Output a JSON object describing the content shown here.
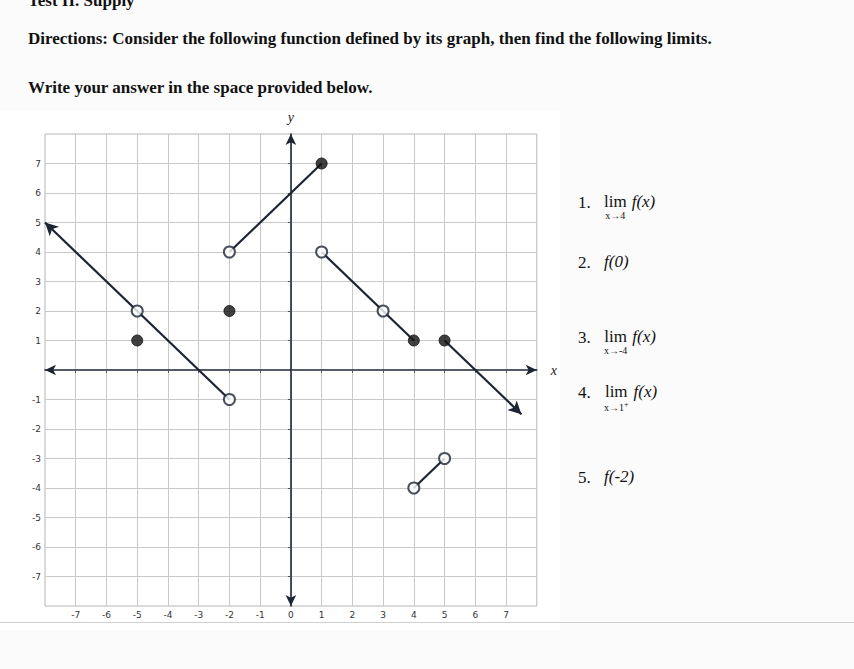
{
  "header": {
    "title": "Test II. Supply",
    "directions": "Directions: Consider the following function defined by its graph, then find the following limits.",
    "instruction": "Write your answer in the space provided below."
  },
  "questions": [
    {
      "number": "1.",
      "lim": "lim",
      "sub": "x→4",
      "expr": "f(x)"
    },
    {
      "number": "2.",
      "expr": "f(0)"
    },
    {
      "number": "3.",
      "lim": "lim",
      "sub": "x→-4",
      "expr": "f(x)"
    },
    {
      "number": "4.",
      "lim": "lim",
      "sub": "x→1",
      "sup": "+",
      "expr": "f(x)"
    },
    {
      "number": "5.",
      "expr": "f(-2)"
    }
  ],
  "chart_data": {
    "type": "line",
    "x_label": "x",
    "y_label": "y",
    "xlim": [
      -8,
      8
    ],
    "ylim": [
      -8,
      8
    ],
    "xticks": [
      -7,
      -6,
      -5,
      -4,
      -3,
      -2,
      -1,
      0,
      1,
      2,
      3,
      4,
      5,
      6,
      7
    ],
    "yticks": [
      -7,
      -6,
      -5,
      -4,
      -3,
      -2,
      -1,
      1,
      2,
      3,
      4,
      5,
      6,
      7
    ],
    "grid": true,
    "segments": [
      {
        "marker": "arrow",
        "x": [
          -8,
          -2
        ],
        "values": [
          5,
          -1
        ]
      },
      {
        "x": [
          -2,
          1
        ],
        "values": [
          4,
          7
        ]
      },
      {
        "x": [
          1,
          4
        ],
        "values": [
          4,
          1
        ]
      },
      {
        "marker": "arrow",
        "x": [
          7.5,
          5
        ],
        "values": [
          -1.5,
          1
        ]
      },
      {
        "x": [
          4,
          5
        ],
        "values": [
          -4,
          -3
        ]
      }
    ],
    "points": [
      {
        "marker": "open",
        "x": [
          -5,
          -2,
          -2,
          1,
          3,
          4,
          5
        ],
        "values": [
          2,
          -1,
          4,
          4,
          2,
          -4,
          -3
        ]
      },
      {
        "marker": "closed",
        "x": [
          -5,
          -2,
          1,
          4,
          5
        ],
        "values": [
          1,
          2,
          7,
          1,
          1
        ]
      }
    ]
  }
}
